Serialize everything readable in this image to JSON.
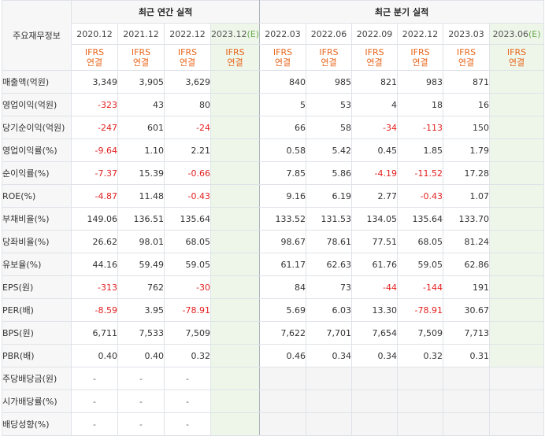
{
  "table": {
    "row_header": "주요재무정보",
    "annual_group_label": "최근 연간 실적",
    "quarter_group_label": "최근 분기 실적",
    "annual_periods": [
      {
        "label": "2020.12",
        "basis": [
          "IFRS",
          "연결"
        ],
        "estimate": false
      },
      {
        "label": "2021.12",
        "basis": [
          "IFRS",
          "연결"
        ],
        "estimate": false
      },
      {
        "label": "2022.12",
        "basis": [
          "IFRS",
          "연결"
        ],
        "estimate": false
      },
      {
        "label": "2023.12",
        "basis": [
          "IFRS",
          "연결"
        ],
        "estimate": true
      }
    ],
    "quarter_periods": [
      {
        "label": "2022.03",
        "basis": [
          "IFRS",
          "연결"
        ],
        "estimate": false
      },
      {
        "label": "2022.06",
        "basis": [
          "IFRS",
          "연결"
        ],
        "estimate": false
      },
      {
        "label": "2022.09",
        "basis": [
          "IFRS",
          "연결"
        ],
        "estimate": false
      },
      {
        "label": "2022.12",
        "basis": [
          "IFRS",
          "연결"
        ],
        "estimate": false
      },
      {
        "label": "2023.03",
        "basis": [
          "IFRS",
          "연결"
        ],
        "estimate": false
      },
      {
        "label": "2023.06",
        "basis": [
          "IFRS",
          "연결"
        ],
        "estimate": true
      }
    ],
    "estimate_mark": "(E)",
    "groups": [
      [
        {
          "label": "매출액(억원)",
          "annual": [
            "3,349",
            "3,905",
            "3,629",
            ""
          ],
          "quarter": [
            "840",
            "985",
            "821",
            "983",
            "871",
            ""
          ]
        },
        {
          "label": "영업이익(억원)",
          "annual": [
            "-323",
            "43",
            "80",
            ""
          ],
          "quarter": [
            "5",
            "53",
            "4",
            "18",
            "16",
            ""
          ]
        },
        {
          "label": "당기순이익(억원)",
          "annual": [
            "-247",
            "601",
            "-24",
            ""
          ],
          "quarter": [
            "66",
            "58",
            "-34",
            "-113",
            "150",
            ""
          ]
        }
      ],
      [
        {
          "label": "영업이익률(%)",
          "annual": [
            "-9.64",
            "1.10",
            "2.21",
            ""
          ],
          "quarter": [
            "0.58",
            "5.42",
            "0.45",
            "1.85",
            "1.79",
            ""
          ]
        },
        {
          "label": "순이익률(%)",
          "annual": [
            "-7.37",
            "15.39",
            "-0.66",
            ""
          ],
          "quarter": [
            "7.85",
            "5.86",
            "-4.19",
            "-11.52",
            "17.28",
            ""
          ]
        },
        {
          "label": "ROE(%)",
          "annual": [
            "-4.87",
            "11.48",
            "-0.43",
            ""
          ],
          "quarter": [
            "9.16",
            "6.19",
            "2.77",
            "-0.43",
            "1.07",
            ""
          ]
        }
      ],
      [
        {
          "label": "부채비율(%)",
          "annual": [
            "149.06",
            "136.51",
            "135.64",
            ""
          ],
          "quarter": [
            "133.52",
            "131.53",
            "134.05",
            "135.64",
            "133.70",
            ""
          ]
        },
        {
          "label": "당좌비율(%)",
          "annual": [
            "26.62",
            "98.01",
            "68.05",
            ""
          ],
          "quarter": [
            "98.67",
            "78.61",
            "77.51",
            "68.05",
            "81.24",
            ""
          ]
        },
        {
          "label": "유보율(%)",
          "annual": [
            "44.16",
            "59.49",
            "59.05",
            ""
          ],
          "quarter": [
            "61.17",
            "62.63",
            "61.76",
            "59.05",
            "62.86",
            ""
          ]
        }
      ],
      [
        {
          "label": "EPS(원)",
          "annual": [
            "-313",
            "762",
            "-30",
            ""
          ],
          "quarter": [
            "84",
            "73",
            "-44",
            "-144",
            "191",
            ""
          ]
        },
        {
          "label": "PER(배)",
          "annual": [
            "-8.59",
            "3.95",
            "-78.91",
            ""
          ],
          "quarter": [
            "5.69",
            "6.03",
            "13.30",
            "-78.91",
            "30.67",
            ""
          ]
        },
        {
          "label": "BPS(원)",
          "annual": [
            "6,711",
            "7,533",
            "7,509",
            ""
          ],
          "quarter": [
            "7,622",
            "7,701",
            "7,654",
            "7,509",
            "7,713",
            ""
          ]
        },
        {
          "label": "PBR(배)",
          "annual": [
            "0.40",
            "0.40",
            "0.32",
            ""
          ],
          "quarter": [
            "0.46",
            "0.34",
            "0.34",
            "0.32",
            "0.31",
            ""
          ]
        }
      ],
      [
        {
          "label": "주당배당금(원)",
          "annual": [
            "-",
            "-",
            "-",
            ""
          ],
          "quarter": null
        },
        {
          "label": "시가배당률(%)",
          "annual": [
            "-",
            "-",
            "-",
            ""
          ],
          "quarter": null
        },
        {
          "label": "배당성향(%)",
          "annual": [
            "-",
            "-",
            "-",
            ""
          ],
          "quarter": null
        }
      ]
    ]
  },
  "colors": {
    "negative": "#e21f1f",
    "basis": "#e8671c",
    "estimate_bg": "#eef6ea",
    "estimate_mark": "#6aa84f"
  }
}
